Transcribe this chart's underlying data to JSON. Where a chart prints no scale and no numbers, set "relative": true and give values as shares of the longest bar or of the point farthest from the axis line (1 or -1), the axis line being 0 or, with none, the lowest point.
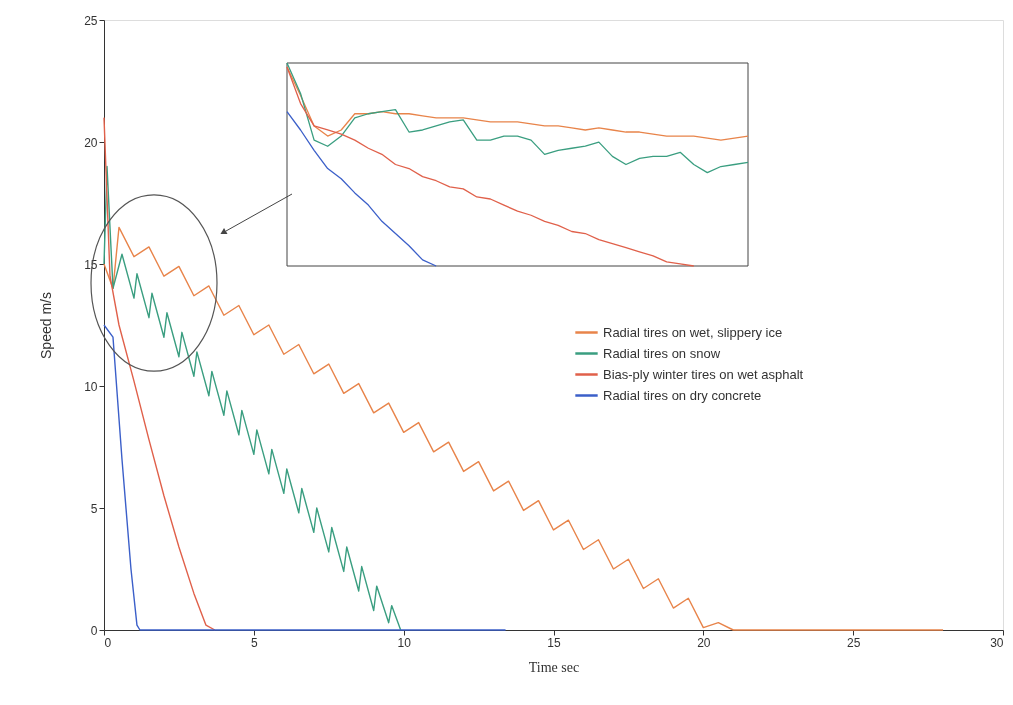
{
  "chart_data": [
    {
      "type": "line",
      "xlabel": "Time sec",
      "ylabel": "Speed m/s",
      "xlim": [
        0,
        30
      ],
      "ylim": [
        0,
        25
      ],
      "xticks": [
        0,
        5,
        10,
        15,
        20,
        25,
        30
      ],
      "yticks": [
        0,
        5,
        10,
        15,
        20,
        25
      ],
      "grid": false,
      "legend": "right",
      "line_style": "solid",
      "series": [
        {
          "name": "Radial tires on wet, slippery ice",
          "color": "#e8844a",
          "x": [
            0,
            0.3,
            0.5,
            1,
            1.5,
            2,
            2.5,
            3,
            3.5,
            4,
            4.5,
            5,
            5.5,
            6,
            6.5,
            7,
            7.5,
            8,
            8.5,
            9,
            9.5,
            10,
            10.5,
            11,
            11.5,
            12,
            12.5,
            13,
            13.5,
            14,
            14.5,
            15,
            15.5,
            16,
            16.5,
            17,
            17.5,
            18,
            18.5,
            19,
            19.5,
            20,
            20.5,
            21,
            28
          ],
          "values": [
            15,
            14,
            16.5,
            15.3,
            15.7,
            14.5,
            14.9,
            13.7,
            14.1,
            12.9,
            13.3,
            12.1,
            12.5,
            11.3,
            11.7,
            10.5,
            10.9,
            9.7,
            10.1,
            8.9,
            9.3,
            8.1,
            8.5,
            7.3,
            7.7,
            6.5,
            6.9,
            5.7,
            6.1,
            4.9,
            5.3,
            4.1,
            4.5,
            3.3,
            3.7,
            2.5,
            2.9,
            1.7,
            2.1,
            0.9,
            1.3,
            0.1,
            0.3,
            0,
            0
          ]
        },
        {
          "name": "Radial tires on snow",
          "color": "#3a9e80",
          "x": [
            0,
            0.1,
            0.3,
            0.6,
            1.0,
            1.1,
            1.5,
            1.6,
            2.0,
            2.1,
            2.5,
            2.6,
            3.0,
            3.1,
            3.5,
            3.6,
            4.0,
            4.1,
            4.5,
            4.6,
            5.0,
            5.1,
            5.5,
            5.6,
            6.0,
            6.1,
            6.5,
            6.6,
            7.0,
            7.1,
            7.5,
            7.6,
            8.0,
            8.1,
            8.5,
            8.6,
            9.0,
            9.1,
            9.5,
            9.6,
            9.9
          ],
          "values": [
            15,
            19,
            14,
            15.4,
            13.6,
            14.6,
            12.8,
            13.8,
            12.0,
            13.0,
            11.2,
            12.2,
            10.4,
            11.4,
            9.6,
            10.6,
            8.8,
            9.8,
            8.0,
            9.0,
            7.2,
            8.2,
            6.4,
            7.4,
            5.6,
            6.6,
            4.8,
            5.8,
            4.0,
            5.0,
            3.2,
            4.2,
            2.4,
            3.4,
            1.6,
            2.6,
            0.8,
            1.8,
            0.3,
            1.0,
            0
          ]
        },
        {
          "name": "Bias-ply winter tires on wet asphalt",
          "color": "#e0604a",
          "x": [
            0,
            0.2,
            0.5,
            1,
            1.5,
            2,
            2.5,
            3,
            3.4,
            3.7
          ],
          "values": [
            21,
            14.5,
            12.5,
            10.2,
            7.8,
            5.5,
            3.4,
            1.5,
            0.2,
            0
          ]
        },
        {
          "name": "Radial tires on dry concrete",
          "color": "#3b5fc9",
          "x": [
            0,
            0.3,
            0.6,
            0.9,
            1.1,
            1.2,
            13.4
          ],
          "values": [
            12.5,
            12,
            7,
            2.5,
            0.2,
            0,
            0
          ]
        }
      ]
    },
    {
      "type": "line",
      "relative": true,
      "tick_labels": false,
      "line_style": "solid",
      "categories": [
        null,
        null,
        null,
        null,
        null,
        null,
        null,
        null,
        null,
        null,
        null,
        null,
        null,
        null,
        null,
        null,
        null,
        null,
        null,
        null,
        null,
        null,
        null,
        null,
        null,
        null,
        null,
        null,
        null,
        null,
        null,
        null,
        null,
        null,
        null
      ],
      "series": [
        {
          "color": "#e8844a",
          "values": [
            0.98,
            0.84,
            0.69,
            0.64,
            0.67,
            0.75,
            0.75,
            0.76,
            0.75,
            0.75,
            0.74,
            0.73,
            0.73,
            0.73,
            0.72,
            0.71,
            0.71,
            0.71,
            0.7,
            0.69,
            0.69,
            0.68,
            0.67,
            0.68,
            0.67,
            0.66,
            0.66,
            0.65,
            0.64,
            0.64,
            0.64,
            0.63,
            0.62,
            0.63,
            0.64
          ]
        },
        {
          "color": "#3a9e80",
          "values": [
            1.0,
            0.85,
            0.62,
            0.59,
            0.64,
            0.73,
            0.75,
            0.76,
            0.77,
            0.66,
            0.67,
            0.69,
            0.71,
            0.72,
            0.62,
            0.62,
            0.64,
            0.64,
            0.62,
            0.55,
            0.57,
            0.58,
            0.59,
            0.61,
            0.54,
            0.5,
            0.53,
            0.54,
            0.54,
            0.56,
            0.5,
            0.46,
            0.49,
            0.5,
            0.51
          ]
        },
        {
          "color": "#e0604a",
          "values": [
            0.98,
            0.8,
            0.69,
            0.67,
            0.65,
            0.62,
            0.58,
            0.55,
            0.5,
            0.48,
            0.44,
            0.42,
            0.39,
            0.38,
            0.34,
            0.33,
            0.3,
            0.27,
            0.25,
            0.22,
            0.2,
            0.17,
            0.16,
            0.13,
            0.11,
            0.09,
            0.07,
            0.05,
            0.02,
            0.01,
            0,
            null,
            null,
            null,
            null
          ]
        },
        {
          "color": "#3b5fc9",
          "values": [
            0.76,
            0.67,
            0.57,
            0.48,
            0.43,
            0.36,
            0.3,
            0.22,
            0.16,
            0.1,
            0.03,
            0,
            null,
            null,
            null,
            null,
            null,
            null,
            null,
            null,
            null,
            null,
            null,
            null,
            null,
            null,
            null,
            null,
            null,
            null,
            null,
            null,
            null,
            null,
            null
          ]
        }
      ]
    }
  ]
}
